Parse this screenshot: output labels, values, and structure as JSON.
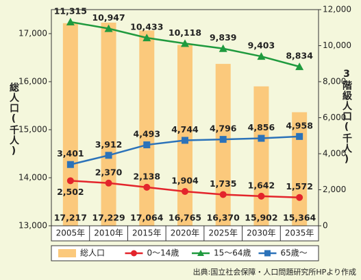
{
  "chart_data": {
    "type": "bar",
    "categories": [
      "2005年",
      "2010年",
      "2015年",
      "2020年",
      "2025年",
      "2030年",
      "2035年"
    ],
    "series": [
      {
        "name": "総人口",
        "type": "bar",
        "color": "#fbc97c",
        "values": [
          17217,
          17229,
          17064,
          16765,
          16370,
          15902,
          15364
        ],
        "value_labels": [
          "17,217",
          "17,229",
          "17,064",
          "16,765",
          "16,370",
          "15,902",
          "15,364"
        ]
      },
      {
        "name": "0〜14歳",
        "type": "line",
        "axis": "y2",
        "color": "#e3242b",
        "values": [
          2502,
          2370,
          2138,
          1904,
          1735,
          1642,
          1572
        ],
        "value_labels": [
          "2,502",
          "2,370",
          "2,138",
          "1,904",
          "1,735",
          "1,642",
          "1,572"
        ]
      },
      {
        "name": "15〜64歳",
        "type": "line",
        "axis": "y2",
        "color": "#1f9a3e",
        "values": [
          11315,
          10947,
          10433,
          10118,
          9839,
          9403,
          8834
        ],
        "value_labels": [
          "11,315",
          "10,947",
          "10,433",
          "10,118",
          "9,839",
          "9,403",
          "8,834"
        ]
      },
      {
        "name": "65歳〜",
        "type": "line",
        "axis": "y2",
        "color": "#2b72b9",
        "values": [
          3401,
          3912,
          4493,
          4744,
          4796,
          4856,
          4958
        ],
        "value_labels": [
          "3,401",
          "3,912",
          "4,493",
          "4,744",
          "4,796",
          "4,856",
          "4,958"
        ]
      }
    ],
    "ylabel": "総人口(千人)",
    "y2label": "3階級人口(千人)",
    "ylim": [
      13000,
      17500
    ],
    "yticks": [
      {
        "value": 13000,
        "label": "13,000"
      },
      {
        "value": 14000,
        "label": "14,000"
      },
      {
        "value": 15000,
        "label": "15,000"
      },
      {
        "value": 16000,
        "label": "16,000"
      },
      {
        "value": 17000,
        "label": "17,000"
      }
    ],
    "y2lim": [
      0,
      12000
    ],
    "y2ticks": [
      0,
      {
        "value": 2000,
        "label": "2,000"
      },
      {
        "value": 4000,
        "label": "4,000"
      },
      {
        "value": 6000,
        "label": "6,000"
      },
      {
        "value": 8000,
        "label": "8,000"
      },
      {
        "value": 10000,
        "label": "10,000"
      },
      {
        "value": 12000,
        "label": "12,000"
      }
    ],
    "source": "出典:国立社会保障・人口問題研究所HPより作成"
  }
}
